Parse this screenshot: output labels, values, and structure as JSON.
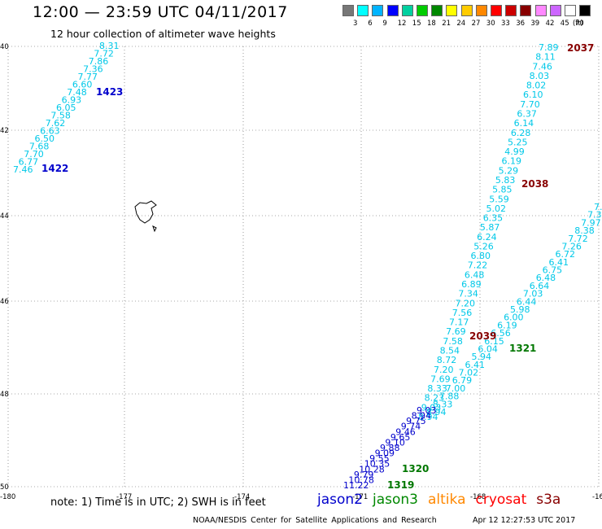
{
  "header": {
    "title": "12:00 — 23:59 UTC 04/11/2017",
    "subtitle": "12 hour collection of altimeter wave heights"
  },
  "legend": {
    "unit": "(ft)",
    "colors": [
      "#777777",
      "#00ffff",
      "#00b4ff",
      "#0000ff",
      "#00d0a0",
      "#00cc00",
      "#008800",
      "#ffff00",
      "#ffcc00",
      "#ff8800",
      "#ff0000",
      "#cc0000",
      "#880000",
      "#ff88ff",
      "#cc66ff",
      "#ffffff",
      "#000000"
    ],
    "labels": [
      "3",
      "6",
      "9",
      "12",
      "15",
      "18",
      "21",
      "24",
      "27",
      "30",
      "33",
      "36",
      "39",
      "42",
      "45",
      "70"
    ]
  },
  "axes": {
    "x_ticks": [
      "-180",
      "-177",
      "-174",
      "-171",
      "-168",
      "-16"
    ],
    "y_ticks": [
      "40",
      "42",
      "44",
      "46",
      "48",
      "50"
    ]
  },
  "map": {
    "colors": {
      "cyan": "#00c8e8",
      "blue": "#0000cc",
      "green": "#007700",
      "maroon": "#880000"
    },
    "passes": [
      {
        "label": "1423",
        "color": "blue"
      },
      {
        "label": "1422",
        "color": "blue"
      },
      {
        "label": "2037",
        "color": "maroon"
      },
      {
        "label": "2038",
        "color": "maroon"
      },
      {
        "label": "2039",
        "color": "maroon"
      },
      {
        "label": "1321",
        "color": "green"
      },
      {
        "label": "1320",
        "color": "green"
      },
      {
        "label": "1319",
        "color": "green"
      }
    ],
    "track_west": [
      "8.31",
      "7.72",
      "7.86",
      "7.36",
      "7.77",
      "6.60",
      "7.48",
      "6.93",
      "6.05",
      "7.58",
      "7.62",
      "6.63",
      "6.50",
      "7.68",
      "7.70",
      "6.77",
      "7.46"
    ],
    "track_a": [
      "7.89",
      "8.11",
      "7.46",
      "8.03",
      "8.02",
      "6.10",
      "7.70",
      "6.37",
      "6.14",
      "6.28",
      "5.25",
      "4.99",
      "6.19",
      "5.29",
      "5.83",
      "5.85",
      "5.59",
      "5.02",
      "6.35",
      "5.87",
      "6.24",
      "5.26",
      "6.80",
      "7.22",
      "6.48",
      "6.89",
      "7.34",
      "7.20",
      "7.56",
      "7.17",
      "7.69",
      "7.58",
      "8.54",
      "8.72",
      "7.20",
      "7.69",
      "8.33",
      "8.23",
      "9.03",
      "8.94"
    ],
    "track_b": [
      "7.3",
      "7.3",
      "7.97",
      "8.38",
      "7.72",
      "7.26",
      "6.72",
      "6.41",
      "6.75",
      "6.48",
      "6.64",
      "7.03",
      "6.44",
      "5.98",
      "6.00",
      "6.19",
      "6.56",
      "6.15",
      "6.04",
      "5.94",
      "6.41",
      "7.02",
      "6.79",
      "7.00",
      "7.88",
      "8.33",
      "8.94"
    ],
    "track_c": [
      "9.03",
      "8.94",
      "9.75",
      "9.74",
      "9.46",
      "9.65",
      "9.10",
      "9.88",
      "9.09",
      "9.55",
      "10.35",
      "10.28",
      "9.79",
      "10.78",
      "11.22"
    ]
  },
  "note": {
    "text": "note: 1) Time is in UTC; 2) SWH is in feet"
  },
  "satellites": [
    {
      "name": "jason2",
      "color": "#0000cc"
    },
    {
      "name": "jason3",
      "color": "#008800"
    },
    {
      "name": "altika",
      "color": "#ff8800"
    },
    {
      "name": "cryosat",
      "color": "#ff0000"
    },
    {
      "name": "s3a",
      "color": "#880000"
    }
  ],
  "footer": {
    "center": "NOAA/NESDIS Center for Satellite Applications and Research",
    "timestamp": "Apr 12 12:27:53 UTC 2017"
  }
}
